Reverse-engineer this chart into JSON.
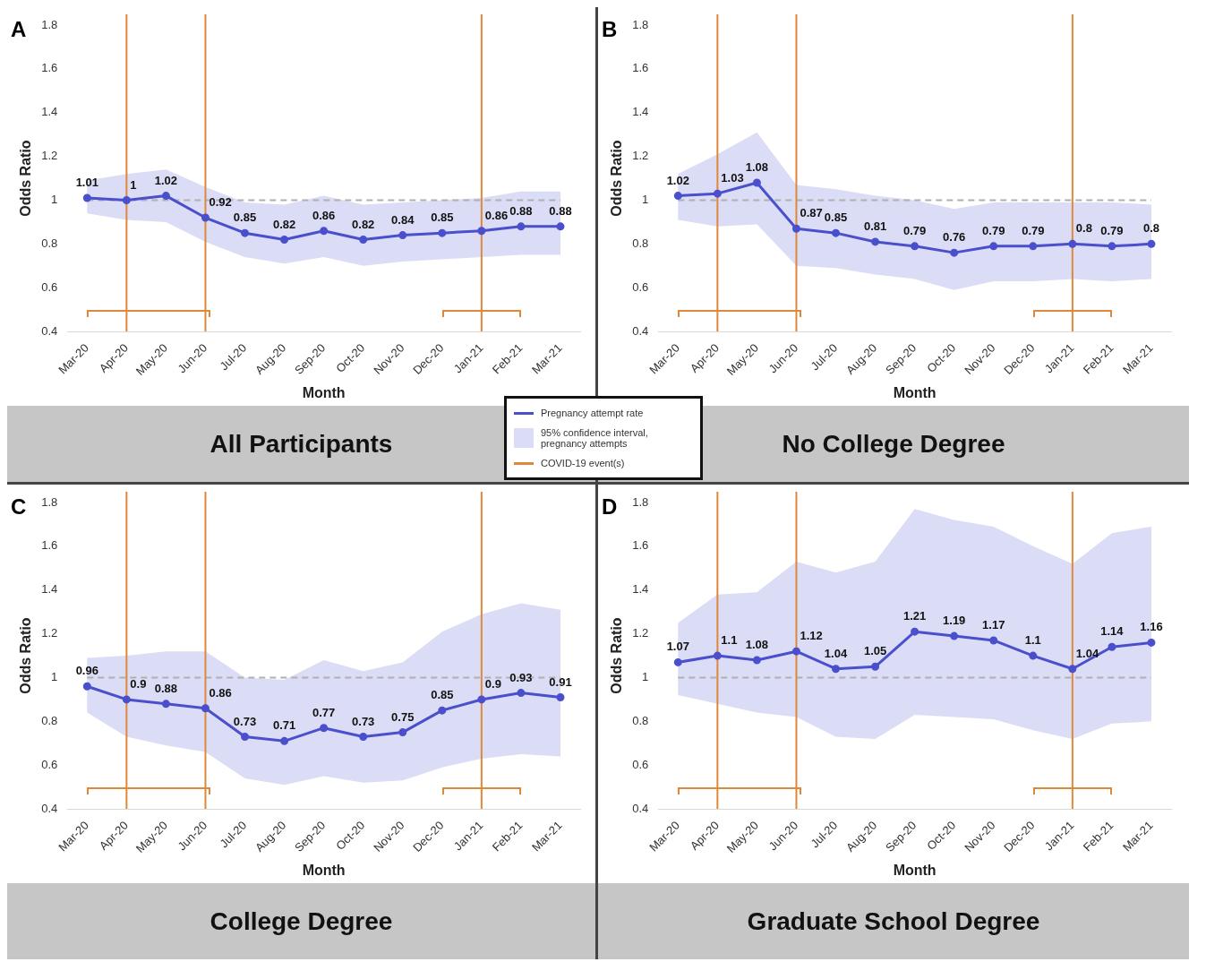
{
  "chart_data": [
    {
      "type": "line",
      "title": "All Participants",
      "xlabel": "Month",
      "ylabel": "Odds Ratio",
      "categories": [
        "Mar-20",
        "Apr-20",
        "May-20",
        "Jun-20",
        "Jul-20",
        "Aug-20",
        "Sep-20",
        "Oct-20",
        "Nov-20",
        "Dec-20",
        "Jan-21",
        "Feb-21",
        "Mar-21"
      ],
      "series": [
        {
          "name": "Pregnancy attempt rate",
          "color": "#4a4fcc",
          "values": [
            1.01,
            1,
            1.02,
            0.92,
            0.85,
            0.82,
            0.86,
            0.82,
            0.84,
            0.85,
            0.86,
            0.88,
            0.88
          ],
          "lower": [
            0.94,
            0.91,
            0.9,
            0.81,
            0.74,
            0.71,
            0.74,
            0.7,
            0.72,
            0.73,
            0.74,
            0.75,
            0.75
          ],
          "upper": [
            1.09,
            1.12,
            1.14,
            1.06,
            0.99,
            0.98,
            1.02,
            0.98,
            0.99,
            1,
            1.01,
            1.04,
            1.04
          ]
        }
      ],
      "ylim": [
        0.4,
        1.8
      ],
      "yticks": [
        0.4,
        0.6,
        0.8,
        1,
        1.2,
        1.4,
        1.6,
        1.8
      ],
      "grid": false,
      "marker": "circle",
      "data_labels": true,
      "legend": "bottom right",
      "ref_lines": [
        {
          "axis": "y",
          "value": 1,
          "color": "#b0b0b0",
          "line_style": "dashed"
        },
        {
          "axis": "x",
          "value": "Apr-20",
          "color": "#e0883a"
        },
        {
          "axis": "x",
          "value": "Jun-20",
          "color": "#e0883a"
        },
        {
          "axis": "x",
          "value": "Jan-21",
          "color": "#e0883a"
        }
      ],
      "annotations": [
        "A",
        "95% confidence interval, pregnancy attempts",
        "COVID-19 event(s)"
      ]
    },
    {
      "type": "line",
      "title": "No College Degree",
      "xlabel": "Month",
      "ylabel": "Odds Ratio",
      "categories": [
        "Mar-20",
        "Apr-20",
        "May-20",
        "Jun-20",
        "Jul-20",
        "Aug-20",
        "Sep-20",
        "Oct-20",
        "Nov-20",
        "Dec-20",
        "Jan-21",
        "Feb-21",
        "Mar-21"
      ],
      "series": [
        {
          "color": "#4a4fcc",
          "values": [
            1.02,
            1.03,
            1.08,
            0.87,
            0.85,
            0.81,
            0.79,
            0.76,
            0.79,
            0.79,
            0.8,
            0.79,
            0.8
          ],
          "lower": [
            0.91,
            0.88,
            0.89,
            0.7,
            0.69,
            0.66,
            0.64,
            0.59,
            0.63,
            0.63,
            0.64,
            0.63,
            0.64
          ],
          "upper": [
            1.12,
            1.21,
            1.31,
            1.07,
            1.05,
            1.02,
            1,
            0.96,
            0.99,
            0.99,
            0.99,
            0.99,
            0.98
          ]
        }
      ],
      "ylim": [
        0.4,
        1.8
      ],
      "yticks": [
        0.4,
        0.6,
        0.8,
        1,
        1.2,
        1.4,
        1.6,
        1.8
      ],
      "grid": false,
      "marker": "circle",
      "data_labels": true,
      "ref_lines": [
        {
          "axis": "y",
          "value": 1,
          "color": "#b0b0b0",
          "line_style": "dashed"
        },
        {
          "axis": "x",
          "value": "Apr-20",
          "color": "#e0883a"
        },
        {
          "axis": "x",
          "value": "Jun-20",
          "color": "#e0883a"
        },
        {
          "axis": "x",
          "value": "Jan-21",
          "color": "#e0883a"
        }
      ],
      "annotations": [
        "B"
      ]
    },
    {
      "type": "line",
      "title": "College Degree",
      "xlabel": "Month",
      "ylabel": "Odds Ratio",
      "categories": [
        "Mar-20",
        "Apr-20",
        "May-20",
        "Jun-20",
        "Jul-20",
        "Aug-20",
        "Sep-20",
        "Oct-20",
        "Nov-20",
        "Dec-20",
        "Jan-21",
        "Feb-21",
        "Mar-21"
      ],
      "series": [
        {
          "color": "#4a4fcc",
          "values": [
            0.96,
            0.9,
            0.88,
            0.86,
            0.73,
            0.71,
            0.77,
            0.73,
            0.75,
            0.85,
            0.9,
            0.93,
            0.91
          ],
          "lower": [
            0.84,
            0.73,
            0.69,
            0.66,
            0.54,
            0.51,
            0.55,
            0.52,
            0.53,
            0.59,
            0.63,
            0.65,
            0.64
          ],
          "upper": [
            1.09,
            1.1,
            1.12,
            1.12,
            1,
            0.99,
            1.08,
            1.03,
            1.07,
            1.21,
            1.29,
            1.34,
            1.31
          ]
        }
      ],
      "ylim": [
        0.4,
        1.8
      ],
      "yticks": [
        0.4,
        0.6,
        0.8,
        1,
        1.2,
        1.4,
        1.6,
        1.8
      ],
      "grid": false,
      "marker": "circle",
      "data_labels": true,
      "ref_lines": [
        {
          "axis": "y",
          "value": 1,
          "color": "#b0b0b0",
          "line_style": "dashed"
        },
        {
          "axis": "x",
          "value": "Apr-20",
          "color": "#e0883a"
        },
        {
          "axis": "x",
          "value": "Jun-20",
          "color": "#e0883a"
        },
        {
          "axis": "x",
          "value": "Jan-21",
          "color": "#e0883a"
        }
      ],
      "annotations": [
        "C"
      ]
    },
    {
      "type": "line",
      "title": "Graduate School Degree",
      "xlabel": "Month",
      "ylabel": "Odds Ratio",
      "categories": [
        "Mar-20",
        "Apr-20",
        "May-20",
        "Jun-20",
        "Jul-20",
        "Aug-20",
        "Sep-20",
        "Oct-20",
        "Nov-20",
        "Dec-20",
        "Jan-21",
        "Feb-21",
        "Mar-21"
      ],
      "series": [
        {
          "color": "#4a4fcc",
          "values": [
            1.07,
            1.1,
            1.08,
            1.12,
            1.04,
            1.05,
            1.21,
            1.19,
            1.17,
            1.1,
            1.04,
            1.14,
            1.16
          ],
          "lower": [
            0.92,
            0.88,
            0.84,
            0.82,
            0.73,
            0.72,
            0.83,
            0.82,
            0.81,
            0.76,
            0.72,
            0.79,
            0.8
          ],
          "upper": [
            1.25,
            1.38,
            1.39,
            1.53,
            1.48,
            1.53,
            1.77,
            1.72,
            1.69,
            1.6,
            1.52,
            1.66,
            1.69
          ]
        }
      ],
      "ylim": [
        0.4,
        1.8
      ],
      "yticks": [
        0.4,
        0.6,
        0.8,
        1,
        1.2,
        1.4,
        1.6,
        1.8
      ],
      "grid": false,
      "marker": "circle",
      "data_labels": true,
      "ref_lines": [
        {
          "axis": "y",
          "value": 1,
          "color": "#b0b0b0",
          "line_style": "dashed"
        },
        {
          "axis": "x",
          "value": "Apr-20",
          "color": "#e0883a"
        },
        {
          "axis": "x",
          "value": "Jun-20",
          "color": "#e0883a"
        },
        {
          "axis": "x",
          "value": "Jan-21",
          "color": "#e0883a"
        }
      ],
      "annotations": [
        "D"
      ]
    }
  ]
}
